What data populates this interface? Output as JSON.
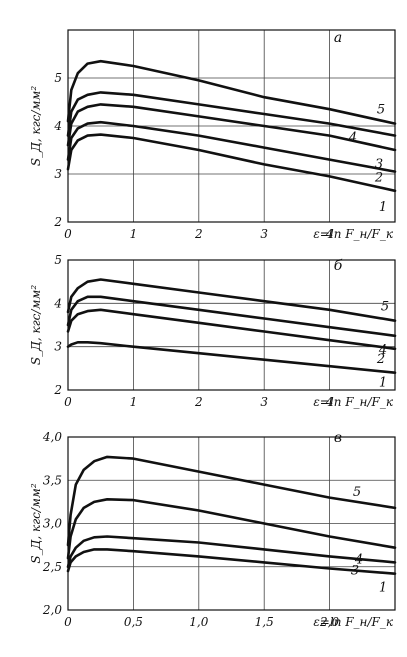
{
  "chart_data": [
    {
      "type": "line",
      "panel_label": "a",
      "xlabel": "ε=ln F_н/F_к",
      "ylabel": "S_Д, кгс/мм²",
      "xlim": [
        0,
        5
      ],
      "ylim": [
        2,
        6
      ],
      "x_ticks": [
        "0",
        "1",
        "2",
        "3",
        "4"
      ],
      "y_ticks": [
        "2",
        "3",
        "4",
        "5"
      ],
      "grid": true,
      "series": [
        {
          "name": "1",
          "x": [
            0,
            0.05,
            0.15,
            0.3,
            0.5,
            1,
            2,
            3,
            4,
            5
          ],
          "y": [
            3.1,
            3.5,
            3.7,
            3.8,
            3.82,
            3.75,
            3.5,
            3.2,
            2.95,
            2.65
          ]
        },
        {
          "name": "2",
          "x": [
            0,
            0.05,
            0.15,
            0.3,
            0.5,
            1,
            2,
            3,
            4,
            5
          ],
          "y": [
            3.3,
            3.75,
            3.95,
            4.05,
            4.08,
            4.0,
            3.8,
            3.55,
            3.3,
            3.05
          ]
        },
        {
          "name": "3",
          "x": [
            0,
            0.05,
            0.15,
            0.3,
            0.5,
            1,
            2,
            3,
            4,
            5
          ],
          "y": [
            3.6,
            4.05,
            4.3,
            4.4,
            4.45,
            4.4,
            4.2,
            4.0,
            3.8,
            3.5
          ]
        },
        {
          "name": "4",
          "x": [
            0,
            0.05,
            0.15,
            0.3,
            0.5,
            1,
            2,
            3,
            4,
            5
          ],
          "y": [
            3.8,
            4.3,
            4.55,
            4.65,
            4.7,
            4.65,
            4.45,
            4.25,
            4.05,
            3.8
          ]
        },
        {
          "name": "5",
          "x": [
            0,
            0.05,
            0.15,
            0.3,
            0.5,
            1,
            2,
            3,
            4,
            5
          ],
          "y": [
            4.1,
            4.75,
            5.1,
            5.3,
            5.35,
            5.25,
            4.95,
            4.6,
            4.35,
            4.05
          ]
        }
      ]
    },
    {
      "type": "line",
      "panel_label": "б",
      "xlabel": "ε=ln F_н/F_к",
      "ylabel": "S_Д, кгс/мм²",
      "xlim": [
        0,
        5
      ],
      "ylim": [
        2,
        5
      ],
      "x_ticks": [
        "0",
        "1",
        "2",
        "3",
        "4"
      ],
      "y_ticks": [
        "2",
        "3",
        "4",
        "5"
      ],
      "grid": true,
      "series": [
        {
          "name": "1",
          "x": [
            0,
            0.05,
            0.15,
            0.3,
            0.5,
            1,
            2,
            3,
            4,
            5
          ],
          "y": [
            3.0,
            3.05,
            3.1,
            3.1,
            3.08,
            3.0,
            2.85,
            2.7,
            2.55,
            2.4
          ]
        },
        {
          "name": "2",
          "x": [
            0,
            0.05,
            0.15,
            0.3,
            0.5,
            1,
            2,
            3,
            4,
            5
          ],
          "y": [
            3.35,
            3.6,
            3.75,
            3.82,
            3.85,
            3.75,
            3.55,
            3.35,
            3.15,
            2.95
          ]
        },
        {
          "name": "4",
          "x": [
            0,
            0.05,
            0.15,
            0.3,
            0.5,
            1,
            2,
            3,
            4,
            5
          ],
          "y": [
            3.5,
            3.85,
            4.05,
            4.15,
            4.15,
            4.05,
            3.85,
            3.65,
            3.45,
            3.25
          ]
        },
        {
          "name": "5",
          "x": [
            0,
            0.05,
            0.15,
            0.3,
            0.5,
            1,
            2,
            3,
            4,
            5
          ],
          "y": [
            3.8,
            4.15,
            4.35,
            4.5,
            4.55,
            4.45,
            4.25,
            4.05,
            3.85,
            3.6
          ]
        }
      ]
    },
    {
      "type": "line",
      "panel_label": "в",
      "xlabel": "ε=ln F_н/F_к",
      "ylabel": "S_Д, кгс/мм²",
      "xlim": [
        0,
        2.5
      ],
      "ylim": [
        2.0,
        4.0
      ],
      "x_ticks": [
        "0",
        "0,5",
        "1,0",
        "1,5",
        "2,0"
      ],
      "y_ticks": [
        "2,0",
        "2,5",
        "3,0",
        "3,5",
        "4,0"
      ],
      "grid": true,
      "series": [
        {
          "name": "1",
          "x": [
            0,
            0.02,
            0.06,
            0.12,
            0.2,
            0.3,
            0.5,
            1.0,
            1.5,
            2.0,
            2.5
          ],
          "y": [
            2.45,
            2.55,
            2.62,
            2.67,
            2.7,
            2.7,
            2.68,
            2.62,
            2.55,
            2.48,
            2.42
          ]
        },
        {
          "name": "3",
          "x": [
            0,
            0.02,
            0.06,
            0.12,
            0.2,
            0.3,
            0.5,
            1.0,
            1.5,
            2.0,
            2.5
          ],
          "y": [
            2.5,
            2.62,
            2.72,
            2.8,
            2.84,
            2.85,
            2.83,
            2.78,
            2.7,
            2.62,
            2.55
          ]
        },
        {
          "name": "4",
          "x": [
            0,
            0.02,
            0.06,
            0.12,
            0.2,
            0.3,
            0.5,
            1.0,
            1.5,
            2.0,
            2.5
          ],
          "y": [
            2.6,
            2.85,
            3.05,
            3.18,
            3.25,
            3.28,
            3.27,
            3.15,
            3.0,
            2.85,
            2.72
          ]
        },
        {
          "name": "5",
          "x": [
            0,
            0.02,
            0.06,
            0.12,
            0.2,
            0.3,
            0.5,
            1.0,
            1.5,
            2.0,
            2.5
          ],
          "y": [
            2.75,
            3.1,
            3.45,
            3.62,
            3.72,
            3.77,
            3.75,
            3.6,
            3.45,
            3.3,
            3.18
          ]
        }
      ]
    }
  ]
}
